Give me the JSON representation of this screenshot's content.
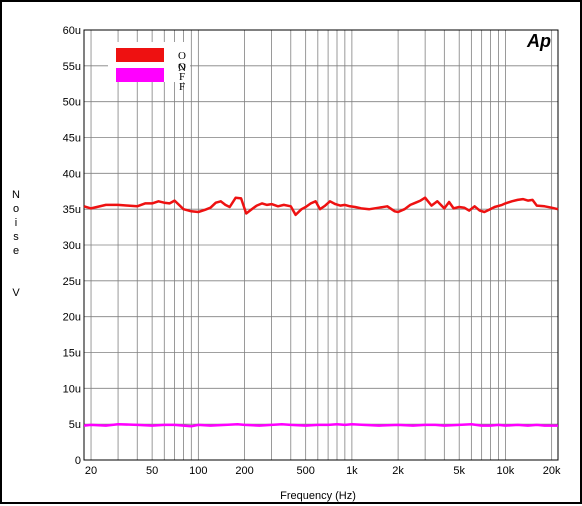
{
  "chart_data": {
    "type": "line",
    "title": "",
    "logo": "Ap",
    "xlabel": "Frequency (Hz)",
    "ylabel_chars": [
      "N",
      "o",
      "i",
      "s",
      "e",
      "V"
    ],
    "xscale": "log",
    "xlim": [
      18,
      22000
    ],
    "ylim": [
      0,
      60
    ],
    "grid": true,
    "legend_position": "top-left",
    "colors": {
      "logo": "#ffff00",
      "grid": "#808080",
      "frame": "#000000"
    },
    "x_ticks": [
      {
        "value": 20,
        "label": "20"
      },
      {
        "value": 50,
        "label": "50"
      },
      {
        "value": 100,
        "label": "100"
      },
      {
        "value": 200,
        "label": "200"
      },
      {
        "value": 500,
        "label": "500"
      },
      {
        "value": 1000,
        "label": "1k"
      },
      {
        "value": 2000,
        "label": "2k"
      },
      {
        "value": 5000,
        "label": "5k"
      },
      {
        "value": 10000,
        "label": "10k"
      },
      {
        "value": 20000,
        "label": "20k"
      }
    ],
    "y_ticks": [
      {
        "value": 0,
        "label": "0"
      },
      {
        "value": 5,
        "label": "5u"
      },
      {
        "value": 10,
        "label": "10u"
      },
      {
        "value": 15,
        "label": "15u"
      },
      {
        "value": 20,
        "label": "20u"
      },
      {
        "value": 25,
        "label": "25u"
      },
      {
        "value": 30,
        "label": "30u"
      },
      {
        "value": 35,
        "label": "35u"
      },
      {
        "value": 40,
        "label": "40u"
      },
      {
        "value": 45,
        "label": "45u"
      },
      {
        "value": 50,
        "label": "50u"
      },
      {
        "value": 55,
        "label": "55u"
      },
      {
        "value": 60,
        "label": "60u"
      }
    ],
    "series": [
      {
        "name": "ON",
        "legend_text": "O\nN",
        "color": "#ee1111",
        "x": [
          18,
          20,
          25,
          30,
          35,
          40,
          45,
          50,
          55,
          60,
          65,
          70,
          80,
          90,
          100,
          110,
          120,
          130,
          140,
          150,
          160,
          175,
          190,
          205,
          220,
          240,
          260,
          280,
          300,
          330,
          360,
          400,
          430,
          470,
          500,
          540,
          580,
          620,
          670,
          720,
          780,
          840,
          900,
          970,
          1050,
          1150,
          1300,
          1500,
          1700,
          1900,
          2000,
          2200,
          2400,
          2600,
          2800,
          3000,
          3300,
          3600,
          4000,
          4300,
          4600,
          5000,
          5400,
          5800,
          6300,
          6800,
          7300,
          7800,
          8500,
          9500,
          10000,
          11000,
          12000,
          13000,
          14000,
          15000,
          16000,
          18000,
          20000,
          22000
        ],
        "y": [
          35.4,
          35.1,
          35.6,
          35.6,
          35.5,
          35.4,
          35.8,
          35.8,
          36.1,
          35.9,
          35.8,
          36.2,
          35.0,
          34.7,
          34.6,
          34.9,
          35.2,
          35.9,
          36.1,
          35.6,
          35.3,
          36.6,
          36.5,
          34.4,
          34.9,
          35.5,
          35.8,
          35.6,
          35.7,
          35.4,
          35.6,
          35.4,
          34.2,
          35.0,
          35.3,
          35.8,
          36.1,
          35.0,
          35.5,
          36.1,
          35.7,
          35.5,
          35.6,
          35.4,
          35.3,
          35.1,
          35.0,
          35.2,
          35.4,
          34.7,
          34.6,
          35.0,
          35.6,
          35.9,
          36.2,
          36.6,
          35.5,
          36.1,
          35.1,
          36.0,
          35.1,
          35.3,
          35.2,
          34.8,
          35.4,
          34.8,
          34.6,
          34.9,
          35.3,
          35.6,
          35.8,
          36.1,
          36.3,
          36.4,
          36.2,
          36.3,
          35.5,
          35.4,
          35.2,
          35.0
        ]
      },
      {
        "name": "OFF",
        "legend_text": "O\nF\nF",
        "color": "#ff00ff",
        "x": [
          18,
          20,
          25,
          30,
          40,
          50,
          60,
          70,
          80,
          90,
          100,
          120,
          150,
          180,
          200,
          250,
          300,
          350,
          400,
          500,
          600,
          700,
          800,
          900,
          1000,
          1200,
          1500,
          2000,
          2500,
          3000,
          3500,
          4000,
          5000,
          6000,
          7000,
          8000,
          9000,
          10000,
          12000,
          14000,
          16000,
          18000,
          20000,
          22000
        ],
        "y": [
          4.8,
          4.9,
          4.8,
          5.0,
          4.9,
          4.8,
          4.9,
          4.9,
          4.8,
          4.7,
          4.9,
          4.8,
          4.9,
          5.0,
          4.9,
          4.8,
          4.9,
          5.0,
          4.9,
          4.8,
          4.9,
          4.9,
          5.0,
          4.9,
          5.0,
          4.9,
          4.8,
          4.9,
          4.8,
          4.9,
          4.9,
          4.8,
          4.9,
          5.0,
          4.8,
          4.8,
          4.9,
          4.8,
          4.9,
          4.8,
          4.9,
          4.8,
          4.8,
          4.8
        ]
      }
    ]
  }
}
